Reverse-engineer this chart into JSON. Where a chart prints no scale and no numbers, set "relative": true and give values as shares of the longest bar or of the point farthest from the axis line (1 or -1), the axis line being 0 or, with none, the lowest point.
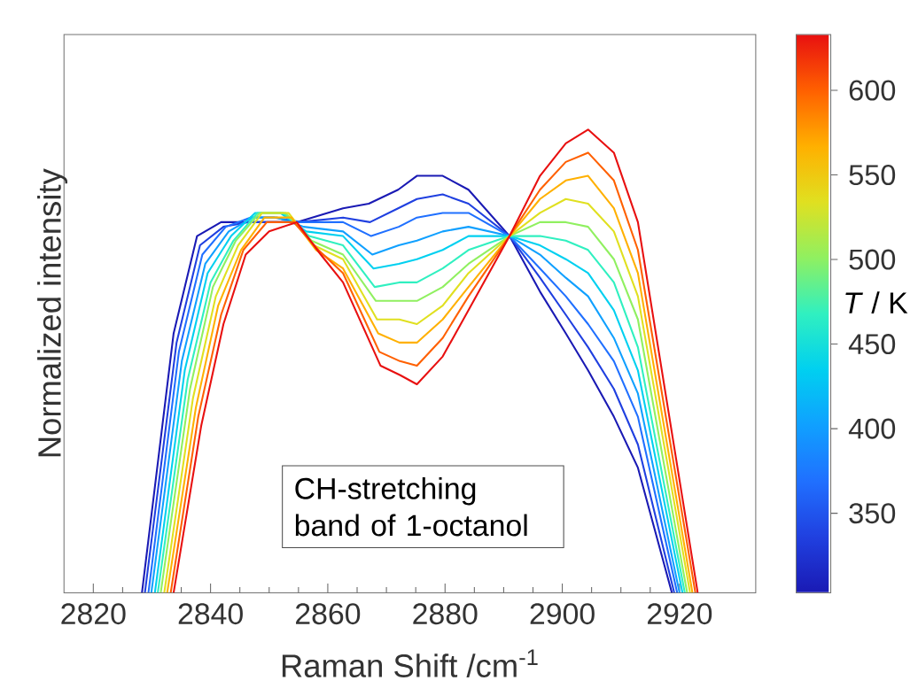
{
  "chart_data": {
    "type": "line",
    "relative": true,
    "xlabel": "Raman Shift /cm$^{-1}$",
    "ylabel": "Normalized intensity",
    "clabel": "*T* / K",
    "annotations": [
      "CH-stretching band of 1-octanol"
    ],
    "xlim": [
      2815,
      2933
    ],
    "xticks": [
      2820,
      2840,
      2860,
      2880,
      2900,
      2920
    ],
    "clim": [
      303,
      633
    ],
    "cticks": [
      350,
      400,
      450,
      500,
      550,
      600
    ],
    "series": [
      {
        "color": "#1a1ab4",
        "x": [
          2828.3,
          2833.7,
          2837.7,
          2841.8,
          2846.0,
          2850.0,
          2854.7,
          2862.6,
          2867.0,
          2872.0,
          2875.2,
          2879.6,
          2884,
          2891,
          2896.2,
          2900.6,
          2904.4,
          2908.8,
          2912.9,
          2918.7
        ],
        "values": [
          0,
          0.56,
          0.77,
          0.8,
          0.8,
          0.8,
          0.8,
          0.83,
          0.84,
          0.87,
          0.9,
          0.9,
          0.87,
          0.77,
          0.65,
          0.56,
          0.48,
          0.38,
          0.27,
          0
        ]
      },
      {
        "color": "#2040e0",
        "x": [
          2828.8,
          2834.2,
          2838.2,
          2842.2,
          2846.4,
          2850.5,
          2855.1,
          2862.6,
          2867.2,
          2872.0,
          2875.2,
          2879.6,
          2884,
          2891,
          2896.2,
          2900.6,
          2904.4,
          2908.8,
          2912.9,
          2919.1
        ],
        "values": [
          0,
          0.54,
          0.75,
          0.79,
          0.8,
          0.8,
          0.8,
          0.81,
          0.8,
          0.83,
          0.85,
          0.86,
          0.84,
          0.77,
          0.68,
          0.6,
          0.53,
          0.44,
          0.32,
          0
        ]
      },
      {
        "color": "#2070ff",
        "x": [
          2829.4,
          2834.6,
          2838.6,
          2842.6,
          2846.8,
          2850.9,
          2855.5,
          2862.6,
          2867.4,
          2872.1,
          2875.2,
          2879.6,
          2884,
          2891,
          2896.2,
          2900.6,
          2904.4,
          2908.8,
          2912.9,
          2919.6
        ],
        "values": [
          0,
          0.52,
          0.73,
          0.79,
          0.81,
          0.81,
          0.8,
          0.8,
          0.77,
          0.79,
          0.81,
          0.82,
          0.82,
          0.77,
          0.7,
          0.64,
          0.58,
          0.5,
          0.38,
          0
        ]
      },
      {
        "color": "#10a0ff",
        "x": [
          2829.9,
          2835.1,
          2839.1,
          2843.1,
          2847.2,
          2851.4,
          2855.9,
          2862.6,
          2867.6,
          2872.1,
          2875.2,
          2879.6,
          2884,
          2891,
          2896.2,
          2900.6,
          2904.4,
          2908.8,
          2912.9,
          2920.0
        ],
        "values": [
          0,
          0.5,
          0.71,
          0.78,
          0.81,
          0.81,
          0.79,
          0.78,
          0.73,
          0.75,
          0.76,
          0.78,
          0.79,
          0.77,
          0.73,
          0.68,
          0.64,
          0.55,
          0.43,
          0
        ]
      },
      {
        "color": "#00d0f0",
        "x": [
          2830.5,
          2835.6,
          2839.5,
          2843.5,
          2847.6,
          2851.9,
          2856.3,
          2862.6,
          2867.8,
          2872.1,
          2875.2,
          2879.6,
          2884,
          2891,
          2896.2,
          2900.6,
          2904.4,
          2908.8,
          2912.9,
          2920.5
        ],
        "values": [
          0,
          0.48,
          0.69,
          0.77,
          0.82,
          0.82,
          0.78,
          0.77,
          0.7,
          0.71,
          0.72,
          0.74,
          0.77,
          0.77,
          0.75,
          0.72,
          0.69,
          0.61,
          0.48,
          0
        ]
      },
      {
        "color": "#30f0c0",
        "x": [
          2831.0,
          2836.1,
          2840.0,
          2843.9,
          2848.0,
          2852.4,
          2856.8,
          2862.6,
          2868.0,
          2872.2,
          2875.2,
          2879.6,
          2884,
          2891,
          2896.2,
          2900.6,
          2904.4,
          2908.8,
          2912.9,
          2920.9
        ],
        "values": [
          0,
          0.46,
          0.67,
          0.76,
          0.82,
          0.82,
          0.77,
          0.75,
          0.66,
          0.67,
          0.67,
          0.7,
          0.74,
          0.77,
          0.77,
          0.76,
          0.74,
          0.67,
          0.53,
          0
        ]
      },
      {
        "color": "#90f060",
        "x": [
          2831.5,
          2836.5,
          2840.4,
          2844.3,
          2848.4,
          2852.8,
          2857.2,
          2862.6,
          2868.2,
          2872.2,
          2875.2,
          2879.6,
          2884,
          2891,
          2896.2,
          2900.6,
          2904.4,
          2908.8,
          2912.9,
          2921.3
        ],
        "values": [
          0,
          0.44,
          0.66,
          0.76,
          0.82,
          0.82,
          0.76,
          0.73,
          0.63,
          0.63,
          0.63,
          0.66,
          0.71,
          0.77,
          0.8,
          0.8,
          0.79,
          0.72,
          0.59,
          0
        ]
      },
      {
        "color": "#e0e020",
        "x": [
          2832.1,
          2837.0,
          2840.9,
          2844.7,
          2848.8,
          2853.3,
          2857.6,
          2862.6,
          2868.4,
          2872.2,
          2875.2,
          2879.6,
          2884,
          2891,
          2896.2,
          2900.6,
          2904.4,
          2908.8,
          2912.9,
          2921.8
        ],
        "values": [
          0,
          0.42,
          0.64,
          0.75,
          0.82,
          0.82,
          0.75,
          0.72,
          0.59,
          0.59,
          0.58,
          0.62,
          0.69,
          0.77,
          0.82,
          0.85,
          0.84,
          0.78,
          0.64,
          0
        ]
      },
      {
        "color": "#ffb000",
        "x": [
          2832.6,
          2837.5,
          2841.3,
          2845.2,
          2849.2,
          2853.8,
          2858.0,
          2862.6,
          2868.6,
          2872.2,
          2875.2,
          2879.6,
          2884,
          2891,
          2896.2,
          2900.6,
          2904.4,
          2908.8,
          2912.9,
          2922.2
        ],
        "values": [
          0,
          0.4,
          0.62,
          0.74,
          0.81,
          0.81,
          0.74,
          0.7,
          0.56,
          0.54,
          0.54,
          0.59,
          0.66,
          0.77,
          0.85,
          0.89,
          0.9,
          0.83,
          0.69,
          0
        ]
      },
      {
        "color": "#ff6000",
        "x": [
          2833.2,
          2837.9,
          2841.8,
          2845.6,
          2849.6,
          2854.2,
          2858.4,
          2862.6,
          2868.8,
          2872.3,
          2875.2,
          2879.6,
          2884,
          2891,
          2896.2,
          2900.6,
          2904.4,
          2908.8,
          2912.9,
          2922.7
        ],
        "values": [
          0,
          0.38,
          0.6,
          0.74,
          0.8,
          0.8,
          0.74,
          0.69,
          0.52,
          0.5,
          0.49,
          0.55,
          0.64,
          0.77,
          0.87,
          0.93,
          0.95,
          0.89,
          0.74,
          0
        ]
      },
      {
        "color": "#e81010",
        "x": [
          2833.7,
          2838.4,
          2842.2,
          2846.0,
          2850.0,
          2854.7,
          2858.8,
          2862.6,
          2869.0,
          2872.3,
          2875.2,
          2879.6,
          2884,
          2891,
          2896.2,
          2900.6,
          2904.4,
          2908.8,
          2912.9,
          2923.1
        ],
        "values": [
          0,
          0.36,
          0.58,
          0.73,
          0.78,
          0.8,
          0.73,
          0.67,
          0.49,
          0.47,
          0.45,
          0.51,
          0.61,
          0.77,
          0.9,
          0.97,
          1.0,
          0.95,
          0.8,
          0
        ]
      }
    ]
  }
}
